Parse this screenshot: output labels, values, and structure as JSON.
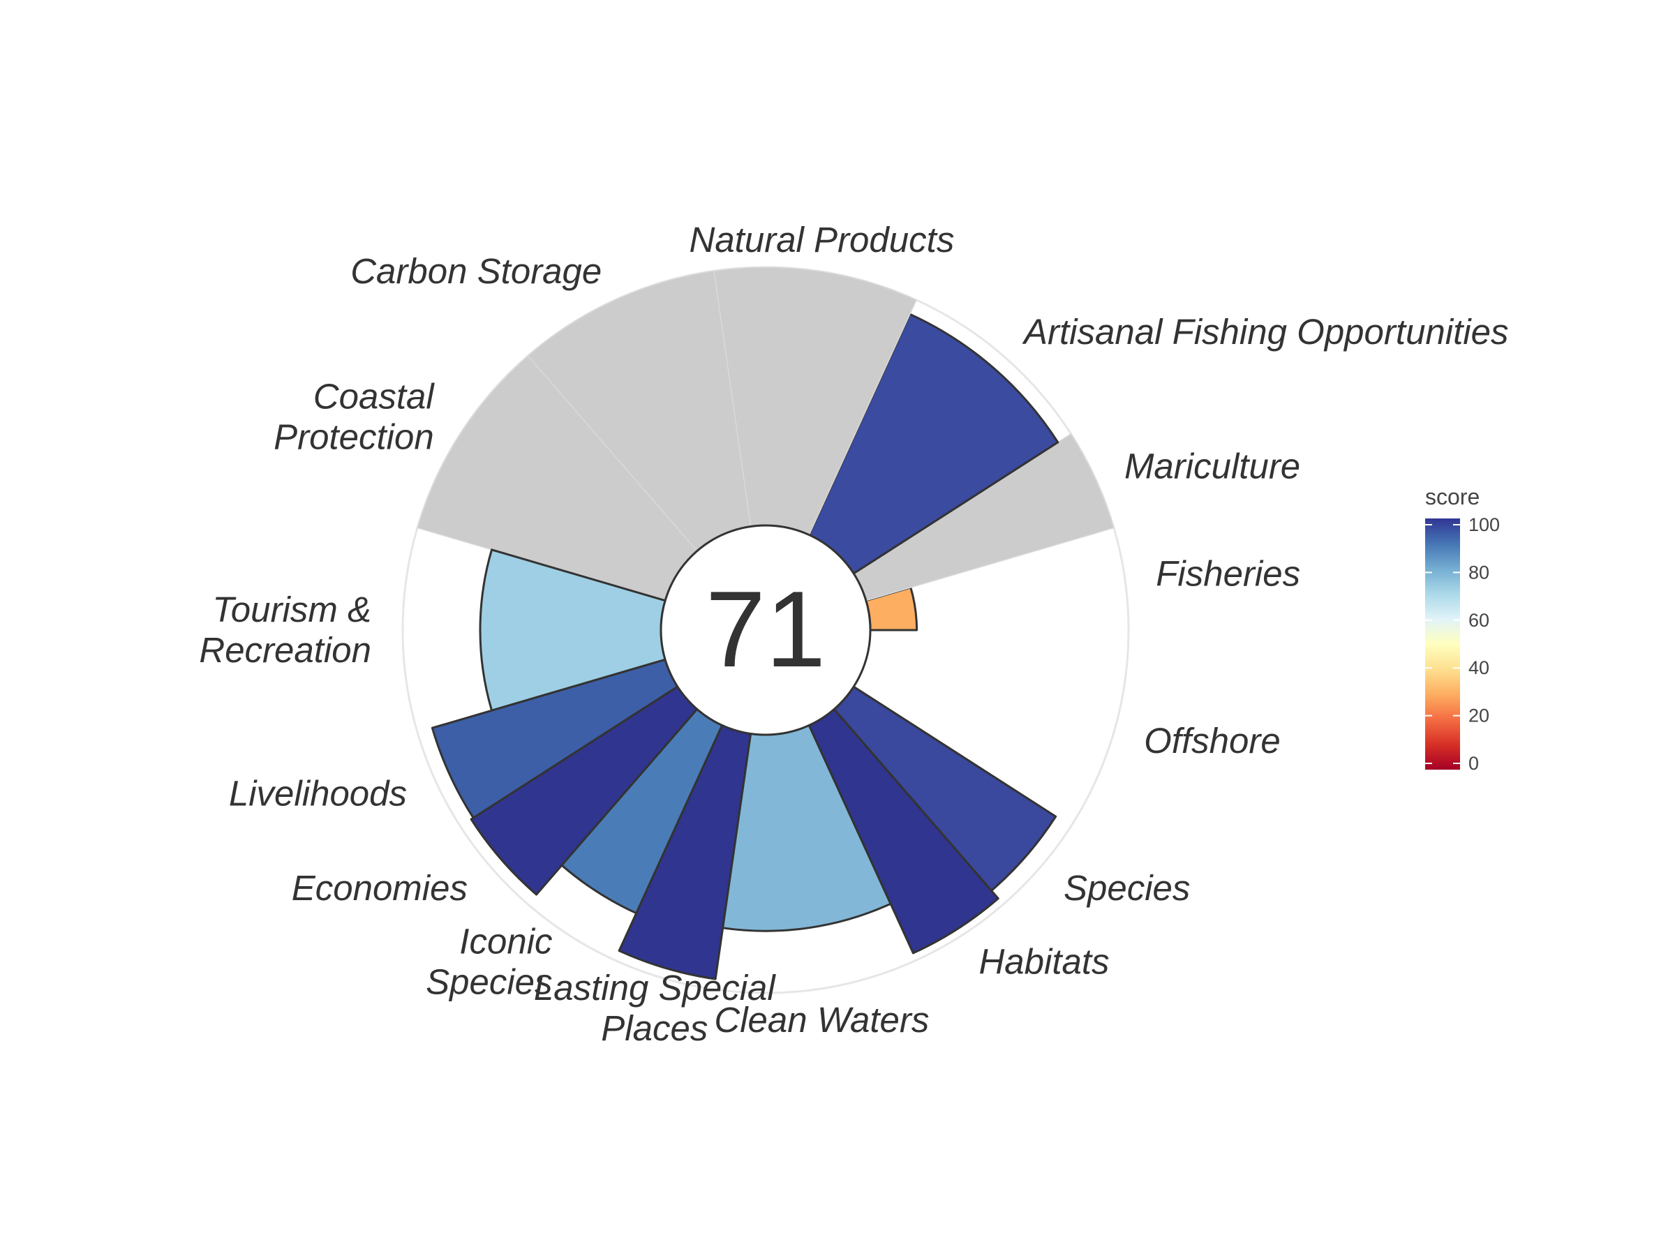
{
  "chart_data": {
    "type": "bar",
    "coord": "polar",
    "overall_score": "71",
    "rmax": 100,
    "categories": [
      "Fisheries",
      "Mariculture",
      "Artisanal Fishing Opportunities",
      "Natural Products",
      "Carbon Storage",
      "Coastal Protection",
      "Tourism & Recreation",
      "Livelihoods",
      "Economies",
      "Iconic Species",
      "Lasting Special Places",
      "Clean Waters",
      "Habitats",
      "Species",
      "Offshore"
    ],
    "label_lines": [
      [
        "Fisheries"
      ],
      [
        "Mariculture"
      ],
      [
        "Artisanal Fishing Opportunities"
      ],
      [
        "Natural Products"
      ],
      [
        "Carbon Storage"
      ],
      [
        "Coastal",
        "Protection"
      ],
      [
        "Tourism &",
        "Recreation"
      ],
      [
        "Livelihoods"
      ],
      [
        "Economies"
      ],
      [
        "Iconic",
        "Species"
      ],
      [
        "Lasting Special",
        "Places"
      ],
      [
        "Clean Waters"
      ],
      [
        "Habitats"
      ],
      [
        "Species"
      ],
      [
        "Offshore"
      ]
    ],
    "values": [
      18,
      null,
      94,
      null,
      null,
      null,
      70,
      94,
      95,
      80,
      96,
      76,
      97,
      93,
      null
    ],
    "weights": [
      0.5,
      0.5,
      1,
      1,
      1,
      1,
      1,
      0.5,
      0.5,
      0.5,
      0.5,
      1,
      0.5,
      0.5,
      1
    ],
    "missing_color": "#cccccc",
    "colors": [
      "#fdae61",
      "#cccccc",
      "#3b4ba0",
      "#cccccc",
      "#cccccc",
      "#cccccc",
      "#9ecfe4",
      "#3d5fa8",
      "#303590",
      "#4a7db8",
      "#303590",
      "#82b7d7",
      "#303590",
      "#3a489d",
      "#ffffff"
    ],
    "legend": {
      "title": "score",
      "ticks": [
        "0",
        "20",
        "40",
        "60",
        "80",
        "100"
      ],
      "gradient": [
        "#a50026",
        "#d73027",
        "#f46d43",
        "#fdae61",
        "#fee090",
        "#ffffbf",
        "#e0f3f8",
        "#abd9e9",
        "#74add1",
        "#4575b4",
        "#313695"
      ]
    }
  }
}
